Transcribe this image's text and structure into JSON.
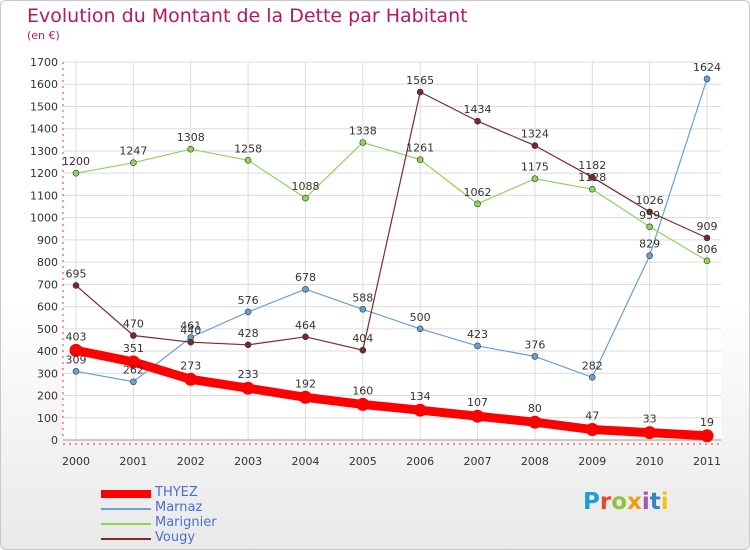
{
  "header": {
    "title": "Evolution du Montant de la Dette par Habitant",
    "subtitle": "(en €)"
  },
  "logo": {
    "text": "Proxiti",
    "letter_colors": [
      "#1a9fd9",
      "#e8452a",
      "#8cc43e",
      "#f39c12",
      "#9b59b6",
      "#2e86c1",
      "#f1c40f"
    ]
  },
  "chart_data": {
    "type": "line",
    "title": "Evolution du Montant de la Dette par Habitant",
    "subtitle": "(en €)",
    "xlabel": "",
    "ylabel": "",
    "x": [
      "2000",
      "2001",
      "2002",
      "2003",
      "2004",
      "2005",
      "2006",
      "2007",
      "2008",
      "2009",
      "2010",
      "2011"
    ],
    "ylim": [
      0,
      1700
    ],
    "yticks": [
      0,
      100,
      200,
      300,
      400,
      500,
      600,
      700,
      800,
      900,
      1000,
      1100,
      1200,
      1300,
      1400,
      1500,
      1600,
      1700
    ],
    "grid": true,
    "legend_position": "bottom-left",
    "series": [
      {
        "name": "THYEZ",
        "color": "#ff0000",
        "emphasis": true,
        "values": [
          403,
          351,
          273,
          233,
          192,
          160,
          134,
          107,
          80,
          47,
          33,
          19
        ]
      },
      {
        "name": "Marnaz",
        "color": "#6a9fd4",
        "emphasis": false,
        "values": [
          309,
          262,
          461,
          576,
          678,
          588,
          500,
          423,
          376,
          282,
          829,
          1624
        ]
      },
      {
        "name": "Marignier",
        "color": "#8fd45a",
        "emphasis": false,
        "values": [
          1200,
          1247,
          1308,
          1258,
          1088,
          1338,
          1261,
          1062,
          1175,
          1128,
          959,
          806
        ]
      },
      {
        "name": "Vougy",
        "color": "#7a2a2a",
        "emphasis": false,
        "values": [
          695,
          470,
          440,
          428,
          464,
          404,
          1565,
          1434,
          1324,
          1182,
          1026,
          909
        ]
      }
    ]
  }
}
